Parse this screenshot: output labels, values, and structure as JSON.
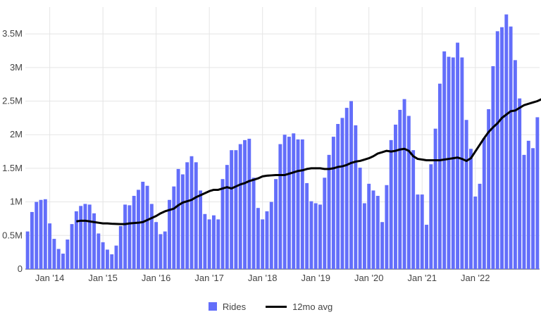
{
  "chart_data": {
    "type": "bar",
    "x_start": "2013-08",
    "x_tick_labels": [
      "Jan '14",
      "Jan '15",
      "Jan '16",
      "Jan '17",
      "Jan '18",
      "Jan '19",
      "Jan '20",
      "Jan '21",
      "Jan '22"
    ],
    "y_tick_labels": [
      "0",
      "0.5M",
      "1M",
      "1.5M",
      "2M",
      "2.5M",
      "3M",
      "3.5M"
    ],
    "ylim": [
      0,
      3900000
    ],
    "grid": true,
    "legend_position": "bottom-center",
    "colors": {
      "bars": "#636efa",
      "line": "#000000",
      "grid": "#e5e5e5"
    },
    "series": [
      {
        "name": "Rides",
        "type": "bar",
        "values": [
          560000,
          850000,
          1000000,
          1030000,
          1040000,
          680000,
          450000,
          300000,
          230000,
          440000,
          670000,
          860000,
          940000,
          970000,
          960000,
          830000,
          530000,
          400000,
          290000,
          220000,
          350000,
          640000,
          960000,
          950000,
          1090000,
          1180000,
          1300000,
          1240000,
          970000,
          700000,
          520000,
          560000,
          1030000,
          1230000,
          1490000,
          1410000,
          1590000,
          1680000,
          1590000,
          1170000,
          820000,
          740000,
          800000,
          740000,
          1340000,
          1550000,
          1770000,
          1770000,
          1860000,
          1920000,
          1940000,
          1360000,
          910000,
          740000,
          860000,
          1000000,
          1340000,
          1860000,
          2000000,
          1970000,
          2020000,
          1930000,
          1930000,
          1280000,
          1010000,
          980000,
          960000,
          1360000,
          1700000,
          1970000,
          2160000,
          2250000,
          2400000,
          2500000,
          2140000,
          1510000,
          980000,
          1270000,
          1170000,
          1090000,
          700000,
          1250000,
          1920000,
          2150000,
          2370000,
          2530000,
          2280000,
          1770000,
          1110000,
          1110000,
          660000,
          1560000,
          2090000,
          2760000,
          3240000,
          3160000,
          3150000,
          3370000,
          3150000,
          2220000,
          1790000,
          1080000,
          1270000,
          1950000,
          2380000,
          3020000,
          3540000,
          3600000,
          3790000,
          3610000,
          3110000,
          2540000,
          1700000,
          1910000,
          1800000,
          2260000
        ]
      },
      {
        "name": "12mo avg",
        "type": "line",
        "start_index": 11,
        "values": [
          710000,
          720000,
          720000,
          710000,
          700000,
          690000,
          680000,
          680000,
          675000,
          672000,
          670000,
          670000,
          680000,
          685000,
          690000,
          700000,
          730000,
          760000,
          790000,
          830000,
          860000,
          880000,
          900000,
          950000,
          990000,
          1010000,
          1030000,
          1070000,
          1100000,
          1130000,
          1160000,
          1180000,
          1180000,
          1200000,
          1220000,
          1200000,
          1230000,
          1260000,
          1280000,
          1310000,
          1330000,
          1350000,
          1380000,
          1390000,
          1395000,
          1400000,
          1400000,
          1400000,
          1420000,
          1440000,
          1460000,
          1470000,
          1490000,
          1500000,
          1500000,
          1500000,
          1490000,
          1490000,
          1500000,
          1520000,
          1530000,
          1550000,
          1580000,
          1600000,
          1610000,
          1630000,
          1650000,
          1680000,
          1720000,
          1740000,
          1760000,
          1750000,
          1760000,
          1780000,
          1790000,
          1760000,
          1680000,
          1640000,
          1630000,
          1620000,
          1620000,
          1620000,
          1620000,
          1630000,
          1640000,
          1650000,
          1660000,
          1640000,
          1610000,
          1650000,
          1750000,
          1850000,
          1950000,
          2040000,
          2110000,
          2170000,
          2250000,
          2300000,
          2350000,
          2360000,
          2400000,
          2440000,
          2460000,
          2480000,
          2500000,
          2530000,
          2580000,
          2610000,
          2620000,
          2620000,
          2630000,
          2620000,
          2700000,
          2740000,
          2770000
        ]
      }
    ]
  }
}
